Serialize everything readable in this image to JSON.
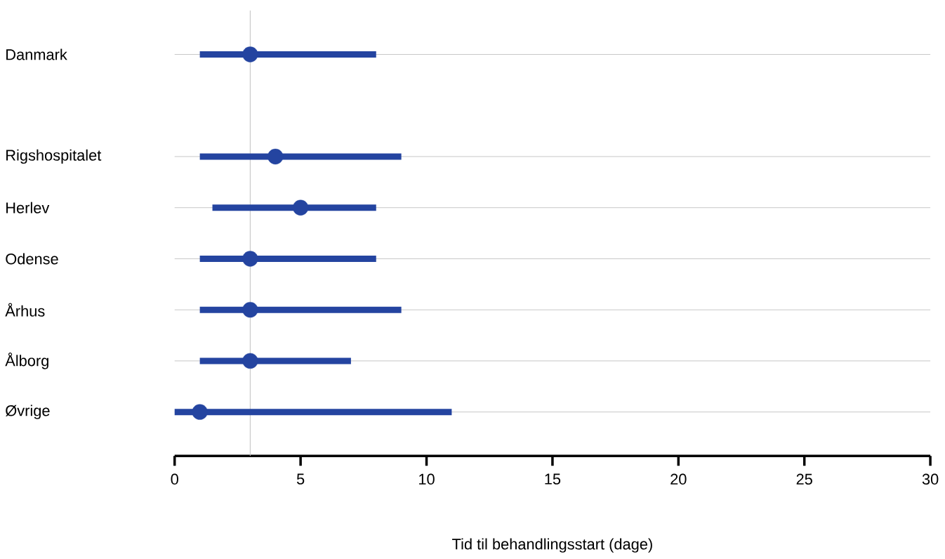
{
  "chart_data": {
    "type": "scatter",
    "orientation": "horizontal",
    "xlabel": "Tid til behandlingsstart (dage)",
    "categories": [
      "Danmark",
      null,
      "Rigshospitalet",
      "Herlev",
      "Odense",
      "Århus",
      "Ålborg",
      "Øvrige"
    ],
    "values": [
      3,
      null,
      4,
      5,
      3,
      3,
      3,
      1
    ],
    "errors": [
      [
        1,
        8
      ],
      null,
      [
        1,
        9
      ],
      [
        1.5,
        8
      ],
      [
        1,
        8
      ],
      [
        1,
        9
      ],
      [
        1,
        7
      ],
      [
        0,
        11
      ]
    ],
    "color": "#2444a0",
    "marker": "circle",
    "grid": "y",
    "xlim": [
      0,
      30
    ],
    "xticks": [
      0,
      5,
      10,
      15,
      20,
      25,
      30
    ],
    "ref_lines": [
      {
        "axis": "x",
        "value": 3,
        "color": "#c0c0c0"
      }
    ]
  }
}
